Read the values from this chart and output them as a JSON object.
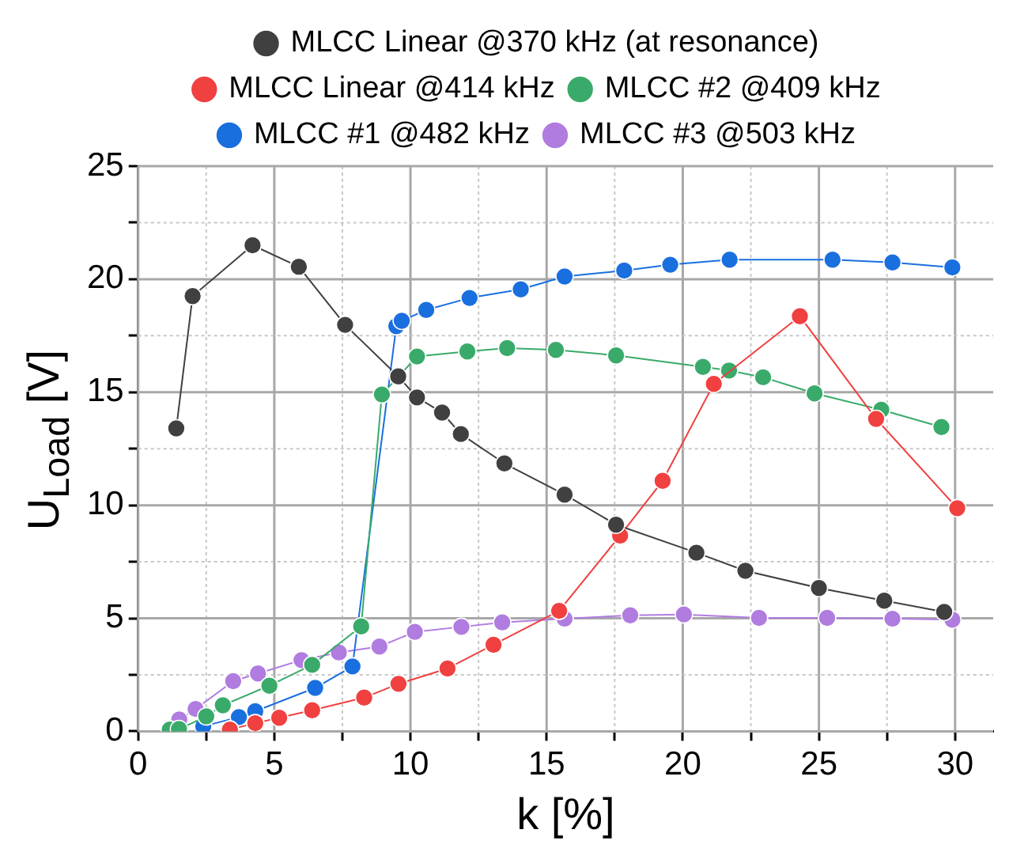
{
  "chart_data": {
    "type": "line",
    "xlabel": "k [%]",
    "ylabel": "U$_{Load}$ [V]",
    "xlim": [
      0,
      31.4
    ],
    "ylim": [
      0,
      25
    ],
    "xticks": [
      0,
      {
        "value": 2.5,
        "label": null
      },
      5,
      {
        "value": 7.5,
        "label": null
      },
      10,
      {
        "value": 12.5,
        "label": null
      },
      15,
      {
        "value": 17.5,
        "label": null
      },
      20,
      {
        "value": 22.5,
        "label": null
      },
      25,
      {
        "value": 27.5,
        "label": null
      },
      30
    ],
    "yticks": [
      0,
      {
        "value": 2.5,
        "label": null
      },
      5,
      {
        "value": 7.5,
        "label": null
      },
      10,
      {
        "value": 12.5,
        "label": null
      },
      15,
      {
        "value": 17.5,
        "label": null
      },
      20,
      {
        "value": 22.5,
        "label": null
      },
      25
    ],
    "grid": true,
    "legend": "top",
    "marker": "circle",
    "line_style": "solid",
    "series": [
      {
        "name": "MLCC Linear @370 kHz (at resonance)",
        "color": "#404040",
        "x": [
          1.4,
          2.0,
          4.2,
          5.9,
          7.6,
          9.55,
          10.24,
          11.16,
          11.85,
          13.45,
          15.66,
          17.55,
          20.5,
          22.3,
          25.0,
          27.4,
          29.6
        ],
        "values": [
          13.4,
          19.25,
          21.5,
          20.55,
          17.98,
          15.7,
          14.77,
          14.1,
          13.15,
          11.85,
          10.47,
          9.14,
          7.9,
          7.1,
          6.34,
          5.78,
          5.28
        ]
      },
      {
        "name": "MLCC Linear @414 kHz",
        "color": "#f04040",
        "x": [
          3.37,
          4.3,
          5.18,
          6.39,
          8.3,
          9.56,
          11.36,
          13.05,
          15.46,
          17.7,
          19.26,
          21.14,
          24.3,
          27.1,
          30.08
        ],
        "values": [
          0.08,
          0.36,
          0.6,
          0.93,
          1.49,
          2.1,
          2.78,
          3.83,
          5.33,
          8.66,
          11.08,
          15.37,
          18.36,
          13.82,
          9.87
        ]
      },
      {
        "name": "MLCC #2 @409 kHz",
        "color": "#3aaa6a",
        "x": [
          1.16,
          1.5,
          2.5,
          3.11,
          4.82,
          6.39,
          8.19,
          8.95,
          10.24,
          12.09,
          13.55,
          15.34,
          17.55,
          20.74,
          21.7,
          22.95,
          24.84,
          27.29,
          29.5
        ],
        "values": [
          0.08,
          0.1,
          0.66,
          1.15,
          2.02,
          2.94,
          4.64,
          14.9,
          16.58,
          16.8,
          16.95,
          16.87,
          16.63,
          16.12,
          15.96,
          15.66,
          14.95,
          14.22,
          13.46
        ]
      },
      {
        "name": "MLCC #1 @482 kHz",
        "color": "#1a6fdf",
        "x": [
          2.39,
          3.7,
          4.3,
          6.5,
          7.87,
          9.48,
          9.68,
          10.58,
          12.17,
          14.05,
          15.66,
          17.85,
          19.54,
          21.72,
          25.5,
          27.7,
          29.9
        ],
        "values": [
          0.22,
          0.63,
          0.89,
          1.92,
          2.87,
          17.92,
          18.16,
          18.64,
          19.17,
          19.55,
          20.12,
          20.38,
          20.64,
          20.86,
          20.86,
          20.74,
          20.52
        ]
      },
      {
        "name": "MLCC #3 @503 kHz",
        "color": "#b07ce0",
        "x": [
          1.51,
          2.11,
          3.49,
          4.4,
          6.0,
          7.37,
          8.86,
          10.16,
          11.87,
          13.37,
          15.66,
          18.07,
          20.04,
          22.8,
          25.3,
          27.7,
          29.9
        ],
        "values": [
          0.52,
          0.99,
          2.22,
          2.56,
          3.15,
          3.49,
          3.75,
          4.4,
          4.62,
          4.82,
          4.98,
          5.13,
          5.17,
          5.02,
          5.02,
          4.98,
          4.94
        ]
      }
    ]
  }
}
